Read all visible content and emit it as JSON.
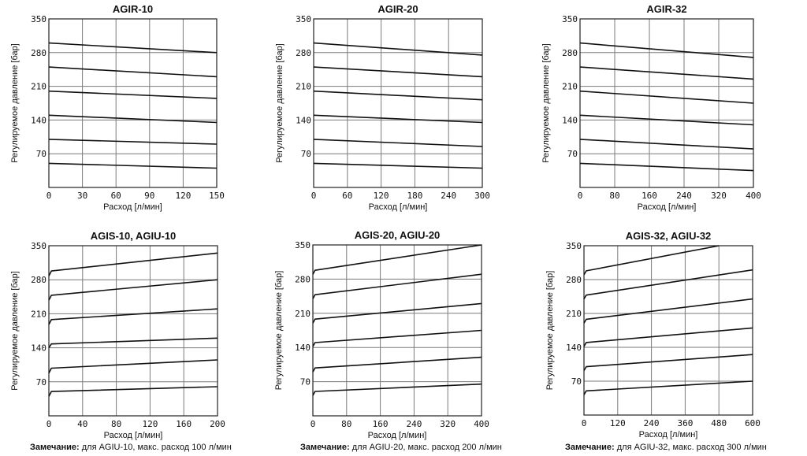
{
  "common": {
    "ylabel": "Регулируемое давление [бар]",
    "xlabel": "Расход [л/мин]"
  },
  "chart_data": [
    {
      "type": "line",
      "title": "AGIR-10",
      "xlabel": "Расход [л/мин]",
      "ylabel": "Регулируемое давление [бар]",
      "xlim": [
        0,
        150
      ],
      "ylim": [
        0,
        350
      ],
      "xticks": [
        0,
        30,
        60,
        90,
        120,
        150
      ],
      "yticks": [
        70,
        140,
        210,
        280,
        350
      ],
      "grid": true,
      "series": [
        {
          "x": [
            0,
            150
          ],
          "y": [
            300,
            280
          ]
        },
        {
          "x": [
            0,
            150
          ],
          "y": [
            250,
            230
          ]
        },
        {
          "x": [
            0,
            150
          ],
          "y": [
            200,
            185
          ]
        },
        {
          "x": [
            0,
            150
          ],
          "y": [
            150,
            135
          ]
        },
        {
          "x": [
            0,
            150
          ],
          "y": [
            100,
            90
          ]
        },
        {
          "x": [
            0,
            150
          ],
          "y": [
            50,
            40
          ]
        }
      ]
    },
    {
      "type": "line",
      "title": "AGIR-20",
      "xlabel": "Расход [л/мин]",
      "ylabel": "Регулируемое давление [бар]",
      "xlim": [
        0,
        300
      ],
      "ylim": [
        0,
        350
      ],
      "xticks": [
        0,
        60,
        120,
        180,
        240,
        300
      ],
      "yticks": [
        70,
        140,
        210,
        280,
        350
      ],
      "grid": true,
      "series": [
        {
          "x": [
            0,
            300
          ],
          "y": [
            300,
            275
          ]
        },
        {
          "x": [
            0,
            300
          ],
          "y": [
            250,
            230
          ]
        },
        {
          "x": [
            0,
            300
          ],
          "y": [
            200,
            182
          ]
        },
        {
          "x": [
            0,
            300
          ],
          "y": [
            150,
            135
          ]
        },
        {
          "x": [
            0,
            300
          ],
          "y": [
            100,
            85
          ]
        },
        {
          "x": [
            0,
            300
          ],
          "y": [
            50,
            40
          ]
        }
      ]
    },
    {
      "type": "line",
      "title": "AGIR-32",
      "xlabel": "Расход [л/мин]",
      "ylabel": "Регулируемое давление [бар]",
      "xlim": [
        0,
        400
      ],
      "ylim": [
        0,
        350
      ],
      "xticks": [
        0,
        80,
        160,
        240,
        320,
        400
      ],
      "yticks": [
        70,
        140,
        210,
        280,
        350
      ],
      "grid": true,
      "series": [
        {
          "x": [
            0,
            400
          ],
          "y": [
            300,
            270
          ]
        },
        {
          "x": [
            0,
            400
          ],
          "y": [
            250,
            225
          ]
        },
        {
          "x": [
            0,
            400
          ],
          "y": [
            200,
            175
          ]
        },
        {
          "x": [
            0,
            400
          ],
          "y": [
            150,
            130
          ]
        },
        {
          "x": [
            0,
            400
          ],
          "y": [
            100,
            80
          ]
        },
        {
          "x": [
            0,
            400
          ],
          "y": [
            50,
            35
          ]
        }
      ]
    },
    {
      "type": "line",
      "title": "AGIS-10, AGIU-10",
      "xlabel": "Расход [л/мин]",
      "ylabel": "Регулируемое давление [бар]",
      "xlim": [
        0,
        200
      ],
      "ylim": [
        0,
        350
      ],
      "xticks": [
        0,
        40,
        80,
        120,
        160,
        200
      ],
      "yticks": [
        70,
        140,
        210,
        280,
        350
      ],
      "grid": true,
      "series": [
        {
          "x": [
            0,
            3,
            200
          ],
          "y": [
            288,
            298,
            335
          ]
        },
        {
          "x": [
            0,
            3,
            200
          ],
          "y": [
            238,
            248,
            280
          ]
        },
        {
          "x": [
            0,
            3,
            200
          ],
          "y": [
            188,
            198,
            220
          ]
        },
        {
          "x": [
            0,
            3,
            200
          ],
          "y": [
            140,
            148,
            160
          ]
        },
        {
          "x": [
            0,
            3,
            200
          ],
          "y": [
            88,
            98,
            115
          ]
        },
        {
          "x": [
            0,
            3,
            200
          ],
          "y": [
            40,
            50,
            60
          ]
        }
      ]
    },
    {
      "type": "line",
      "title": "AGIS-20, AGIU-20",
      "xlabel": "Расход [л/мин]",
      "ylabel": "Регулируемое давление [бар]",
      "xlim": [
        0,
        400
      ],
      "ylim": [
        0,
        350
      ],
      "xticks": [
        0,
        80,
        160,
        240,
        320,
        400
      ],
      "yticks": [
        70,
        140,
        210,
        280,
        350
      ],
      "grid": true,
      "series": [
        {
          "x": [
            0,
            5,
            400
          ],
          "y": [
            290,
            298,
            350
          ]
        },
        {
          "x": [
            0,
            5,
            400
          ],
          "y": [
            240,
            248,
            290
          ]
        },
        {
          "x": [
            0,
            5,
            400
          ],
          "y": [
            190,
            198,
            230
          ]
        },
        {
          "x": [
            0,
            5,
            400
          ],
          "y": [
            142,
            150,
            175
          ]
        },
        {
          "x": [
            0,
            5,
            400
          ],
          "y": [
            90,
            98,
            120
          ]
        },
        {
          "x": [
            0,
            5,
            400
          ],
          "y": [
            42,
            50,
            65
          ]
        }
      ]
    },
    {
      "type": "line",
      "title": "AGIS-32, AGIU-32",
      "xlabel": "Расход [л/мин]",
      "ylabel": "Регулируемое давление [бар]",
      "xlim": [
        0,
        600
      ],
      "ylim": [
        0,
        350
      ],
      "xticks": [
        0,
        120,
        240,
        360,
        480,
        600
      ],
      "yticks": [
        70,
        140,
        210,
        280,
        350
      ],
      "grid": true,
      "series": [
        {
          "x": [
            0,
            8,
            480
          ],
          "y": [
            290,
            298,
            350
          ]
        },
        {
          "x": [
            0,
            8,
            600
          ],
          "y": [
            240,
            248,
            300
          ]
        },
        {
          "x": [
            0,
            8,
            600
          ],
          "y": [
            190,
            198,
            240
          ]
        },
        {
          "x": [
            0,
            8,
            600
          ],
          "y": [
            142,
            150,
            180
          ]
        },
        {
          "x": [
            0,
            8,
            600
          ],
          "y": [
            92,
            100,
            125
          ]
        },
        {
          "x": [
            0,
            8,
            600
          ],
          "y": [
            42,
            50,
            70
          ]
        }
      ]
    }
  ],
  "notes": [
    {
      "bold": "Замечание:",
      "text": " для AGIU-10, макс. расход 100 л/мин"
    },
    {
      "bold": "Замечание:",
      "text": " для AGIU-20, макс. расход 200 л/мин"
    },
    {
      "bold": "Замечание:",
      "text": " для AGIU-32, макс. расход 300 л/мин"
    }
  ]
}
